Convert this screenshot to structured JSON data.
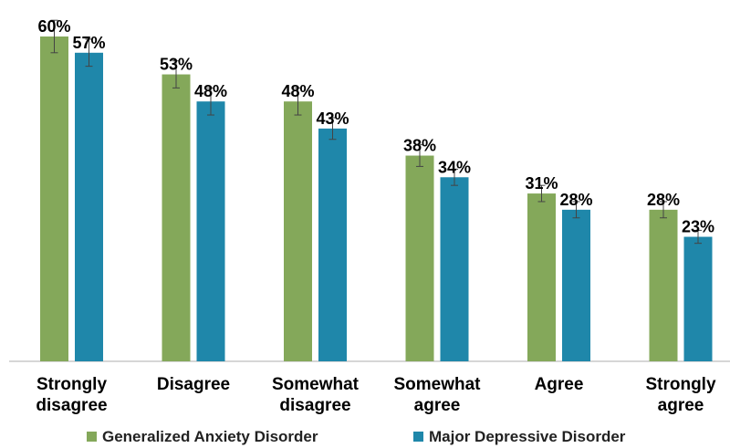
{
  "chart_data": {
    "type": "bar",
    "categories": [
      [
        "Strongly",
        "disagree"
      ],
      [
        "Disagree"
      ],
      [
        "Somewhat",
        "disagree"
      ],
      [
        "Somewhat",
        "agree"
      ],
      [
        "Agree"
      ],
      [
        "Strongly",
        "agree"
      ]
    ],
    "series": [
      {
        "name": "Generalized Anxiety Disorder",
        "color": "#84a85a",
        "values": [
          60,
          53,
          48,
          38,
          31,
          28
        ],
        "labels": [
          "60%",
          "53%",
          "48%",
          "38%",
          "31%",
          "28%"
        ],
        "error": [
          3,
          2.5,
          2.5,
          2,
          1.5,
          1.5
        ]
      },
      {
        "name": "Major Depressive Disorder",
        "color": "#1f87aa",
        "values": [
          57,
          48,
          43,
          34,
          28,
          23
        ],
        "labels": [
          "57%",
          "48%",
          "43%",
          "34%",
          "28%",
          "23%"
        ],
        "error": [
          2.5,
          2.5,
          2,
          1.5,
          1.5,
          1.2
        ]
      }
    ],
    "ylim": [
      0,
      60
    ],
    "legend_position": "bottom",
    "grid": false
  }
}
